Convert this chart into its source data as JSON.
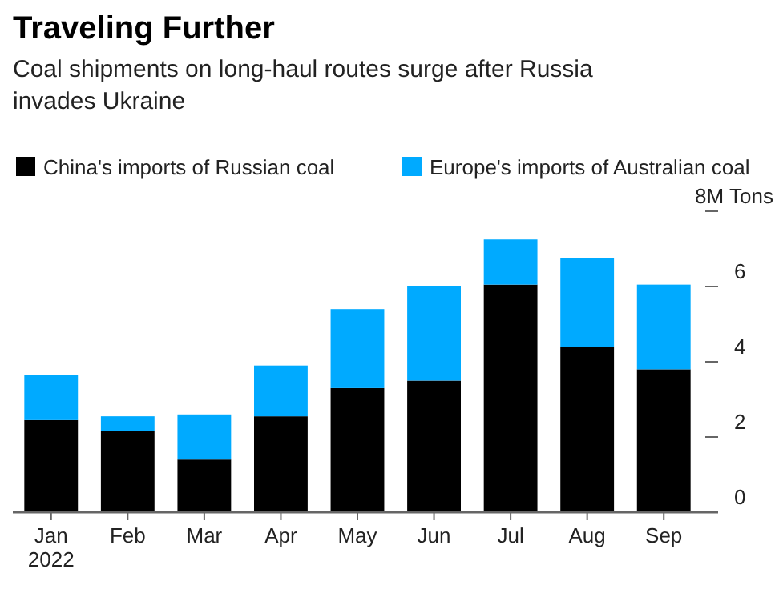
{
  "chart_data": {
    "type": "bar",
    "title": "Traveling Further",
    "subtitle": "Coal shipments on long-haul routes surge after Russia invades Ukraine",
    "categories": [
      "Jan\n2022",
      "Feb",
      "Mar",
      "Apr",
      "May",
      "Jun",
      "Jul",
      "Aug",
      "Sep"
    ],
    "stacked": true,
    "legend": "top left",
    "ylim": [
      0,
      8
    ],
    "yticks": [
      0,
      2,
      4,
      6,
      {
        "value": 8,
        "label": "8M Tons"
      }
    ],
    "series": [
      {
        "name": "China's imports of Russian coal",
        "color": "#000000",
        "values": [
          2.45,
          2.15,
          1.4,
          2.55,
          3.3,
          3.5,
          6.05,
          4.4,
          3.8
        ]
      },
      {
        "name": "Europe's imports of Australian coal",
        "color": "#00aaff",
        "values": [
          1.2,
          0.4,
          1.2,
          1.35,
          2.1,
          2.5,
          1.2,
          2.35,
          2.25
        ]
      }
    ]
  }
}
